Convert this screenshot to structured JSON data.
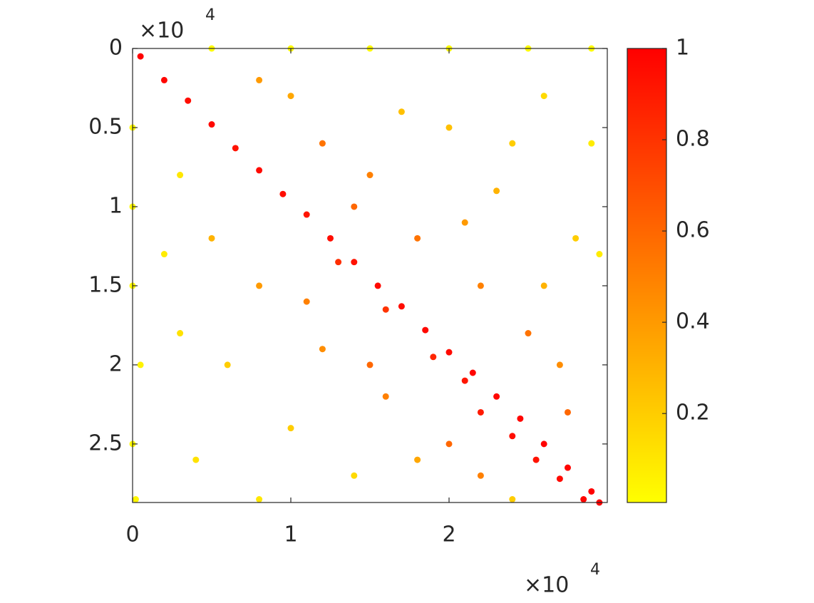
{
  "chart_data": {
    "type": "scatter",
    "xlim": [
      0,
      3
    ],
    "xticks": [
      0,
      1,
      2
    ],
    "ylim": [
      0,
      2.87
    ],
    "yticks": [
      0,
      0.5,
      1,
      1.5,
      2,
      2.5
    ],
    "y_reverse": true,
    "x_multiplier": {
      "base": "×10",
      "exponent": "4"
    },
    "y_multiplier": {
      "base": "×10",
      "exponent": "4"
    },
    "clim": [
      0.005,
      1
    ],
    "cticks": [
      0.2,
      0.4,
      0.6,
      0.8,
      1
    ],
    "colormap": [
      "#ffff00",
      "#ff0000"
    ],
    "x": [
      0.05,
      0.2,
      0.35,
      0.5,
      0.65,
      0.8,
      0.95,
      1.1,
      1.25,
      1.4,
      1.55,
      1.7,
      1.85,
      2.0,
      2.15,
      2.3,
      2.45,
      2.6,
      2.75,
      2.9,
      2.95,
      2.1,
      2.4,
      2.7,
      1.9,
      2.2,
      2.55,
      2.85,
      1.6,
      1.3,
      1.5,
      1.8,
      2.0,
      2.3,
      2.6,
      2.8,
      2.2,
      1.2,
      1.0,
      0.8,
      2.5,
      2.7,
      2.4,
      1.7,
      2.9,
      2.95,
      2.1,
      1.4,
      2.6,
      2.75,
      0.5,
      1.0,
      1.5,
      2.0,
      2.5,
      2.9,
      0.0,
      0.0,
      0.0,
      0.05,
      0.0,
      0.02,
      0.3,
      0.2,
      0.5,
      0.8,
      1.2,
      1.6,
      2.0,
      0.6,
      1.0,
      0.4,
      1.4,
      1.8,
      2.4,
      0.8,
      1.1,
      1.5,
      0.3,
      2.2
    ],
    "y": [
      0.05,
      0.2,
      0.33,
      0.48,
      0.63,
      0.77,
      0.92,
      1.05,
      1.2,
      1.35,
      1.5,
      1.63,
      1.78,
      1.92,
      2.05,
      2.2,
      2.34,
      2.5,
      2.65,
      2.8,
      2.87,
      2.1,
      2.45,
      2.72,
      1.95,
      2.3,
      2.6,
      2.85,
      1.65,
      1.35,
      0.8,
      1.2,
      0.5,
      0.9,
      0.3,
      1.2,
      1.5,
      0.6,
      0.3,
      0.2,
      1.8,
      2.0,
      0.6,
      0.4,
      0.6,
      1.3,
      1.1,
      1.0,
      1.5,
      2.3,
      0.0,
      0.0,
      0.0,
      0.0,
      0.0,
      0.0,
      0.5,
      1.0,
      1.5,
      2.0,
      2.5,
      2.85,
      0.8,
      1.3,
      1.2,
      1.5,
      1.9,
      2.2,
      2.5,
      2.0,
      2.4,
      2.6,
      2.7,
      2.6,
      2.85,
      2.85,
      1.6,
      2.0,
      1.8,
      2.7
    ],
    "c": [
      1,
      0.98,
      0.95,
      0.97,
      0.93,
      0.96,
      0.95,
      0.92,
      0.95,
      0.93,
      0.96,
      0.95,
      0.97,
      0.96,
      0.98,
      0.97,
      0.98,
      0.99,
      0.98,
      1,
      1,
      0.92,
      0.95,
      0.96,
      0.85,
      0.9,
      0.93,
      0.98,
      0.8,
      0.82,
      0.5,
      0.55,
      0.25,
      0.3,
      0.15,
      0.2,
      0.5,
      0.55,
      0.35,
      0.4,
      0.55,
      0.45,
      0.2,
      0.25,
      0.08,
      0.08,
      0.4,
      0.6,
      0.3,
      0.6,
      0.02,
      0.02,
      0.03,
      0.02,
      0.02,
      0.02,
      0.02,
      0.03,
      0.02,
      0.05,
      0.03,
      0.04,
      0.1,
      0.08,
      0.3,
      0.4,
      0.45,
      0.5,
      0.6,
      0.2,
      0.2,
      0.12,
      0.15,
      0.35,
      0.2,
      0.1,
      0.5,
      0.6,
      0.12,
      0.5
    ]
  }
}
